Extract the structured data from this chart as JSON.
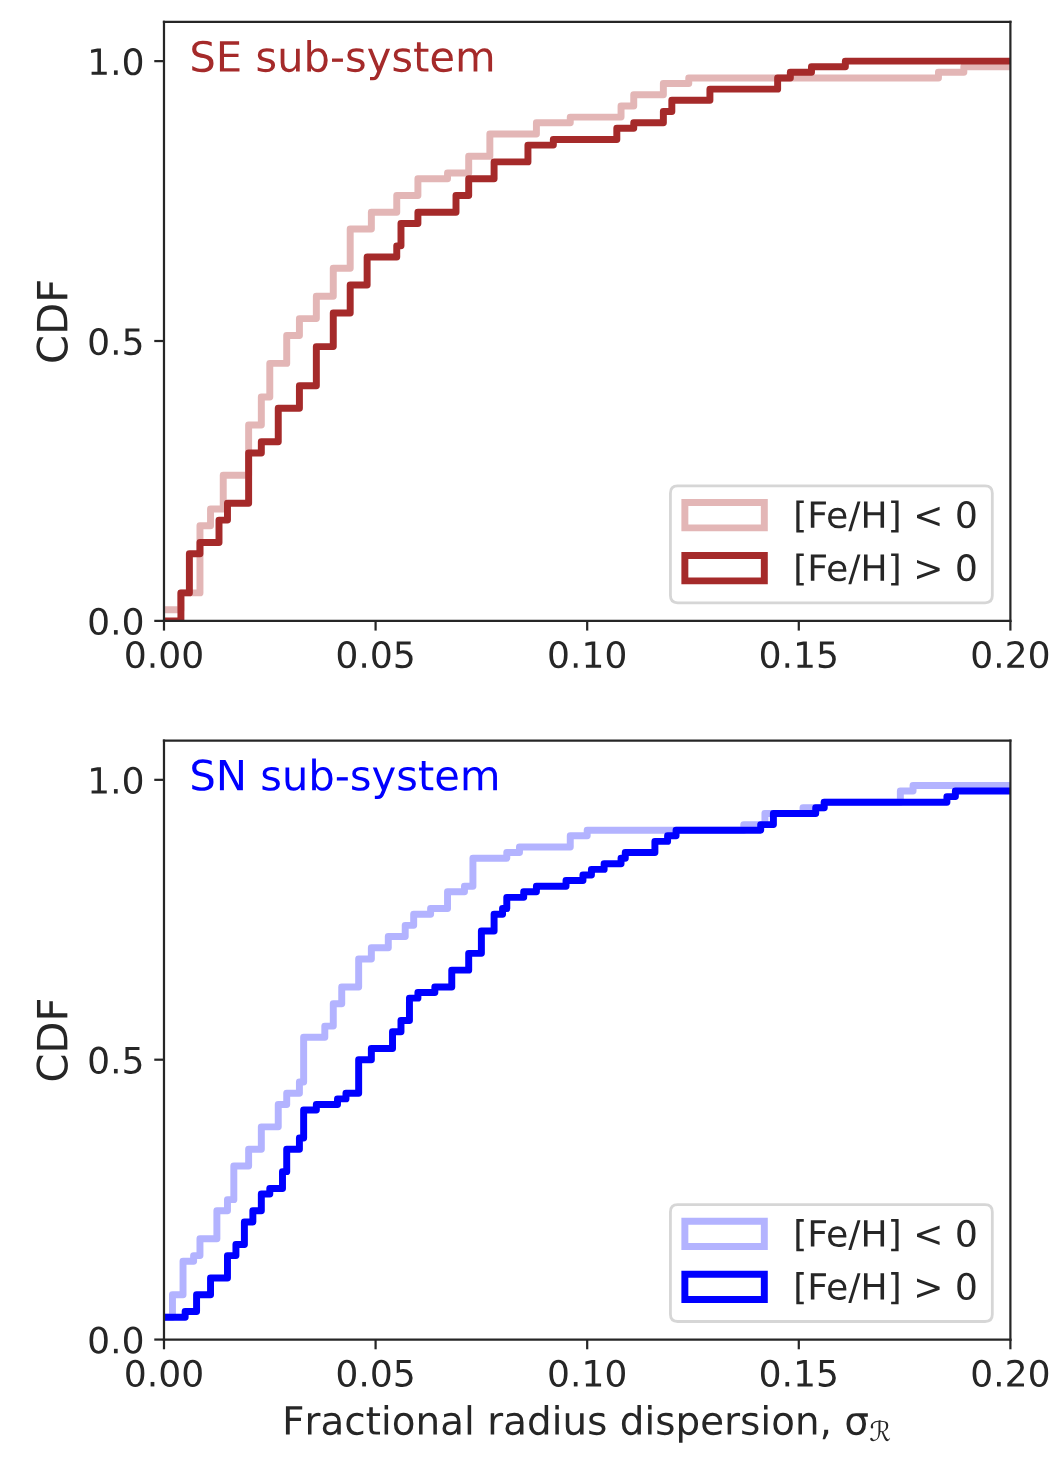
{
  "chart_data": [
    {
      "type": "step",
      "title": "SE sub-system",
      "ylabel": "CDF",
      "legend": "bottom right",
      "xlim": [
        0,
        0.2
      ],
      "ylim": [
        0,
        1.07
      ],
      "xticks": [
        {
          "value": 0,
          "label": "0.00"
        },
        {
          "value": 0.05,
          "label": "0.05"
        },
        {
          "value": 0.1,
          "label": "0.10"
        },
        {
          "value": 0.15,
          "label": "0.15"
        },
        {
          "value": 0.2,
          "label": "0.20"
        }
      ],
      "yticks": [
        {
          "value": 0,
          "label": "0.0"
        },
        {
          "value": 0.5,
          "label": "0.5"
        },
        {
          "value": 1,
          "label": "1.0"
        }
      ],
      "series": [
        {
          "name": "[Fe/H] < 0",
          "color": "#e3b6b6",
          "x": [
            0,
            0.004,
            0.0085,
            0.011,
            0.014,
            0.02,
            0.023,
            0.025,
            0.029,
            0.032,
            0.036,
            0.04,
            0.044,
            0.049,
            0.055,
            0.06,
            0.067,
            0.072,
            0.077,
            0.088,
            0.096,
            0.108,
            0.111,
            0.118,
            0.124,
            0.183,
            0.189,
            0.2
          ],
          "values": [
            0.02,
            0.05,
            0.17,
            0.2,
            0.26,
            0.35,
            0.4,
            0.46,
            0.51,
            0.54,
            0.58,
            0.63,
            0.7,
            0.73,
            0.76,
            0.79,
            0.8,
            0.83,
            0.87,
            0.89,
            0.9,
            0.92,
            0.94,
            0.96,
            0.97,
            0.98,
            0.99,
            0.99
          ]
        },
        {
          "name": "[Fe/H] > 0",
          "color": "#a52a2a",
          "x": [
            0,
            0.004,
            0.006,
            0.0085,
            0.013,
            0.015,
            0.02,
            0.023,
            0.027,
            0.032,
            0.036,
            0.04,
            0.044,
            0.048,
            0.055,
            0.056,
            0.06,
            0.068,
            0.069,
            0.072,
            0.078,
            0.086,
            0.092,
            0.107,
            0.111,
            0.118,
            0.12,
            0.129,
            0.145,
            0.148,
            0.153,
            0.161,
            0.2
          ],
          "values": [
            0,
            0.05,
            0.12,
            0.14,
            0.18,
            0.21,
            0.3,
            0.32,
            0.38,
            0.42,
            0.49,
            0.55,
            0.6,
            0.65,
            0.67,
            0.71,
            0.73,
            0.73,
            0.76,
            0.79,
            0.82,
            0.85,
            0.86,
            0.88,
            0.89,
            0.91,
            0.93,
            0.95,
            0.97,
            0.98,
            0.99,
            1.0,
            1.0
          ]
        }
      ]
    },
    {
      "type": "step",
      "title": "SN sub-system",
      "ylabel": "CDF",
      "xlabel": "Fractional radius dispersion, σ$_{ℛ}$",
      "legend": "bottom right",
      "xlim": [
        0,
        0.2
      ],
      "ylim": [
        0,
        1.07
      ],
      "xticks": [
        {
          "value": 0,
          "label": "0.00"
        },
        {
          "value": 0.05,
          "label": "0.05"
        },
        {
          "value": 0.1,
          "label": "0.10"
        },
        {
          "value": 0.15,
          "label": "0.15"
        },
        {
          "value": 0.2,
          "label": "0.20"
        }
      ],
      "yticks": [
        {
          "value": 0,
          "label": "0.0"
        },
        {
          "value": 0.5,
          "label": "0.5"
        },
        {
          "value": 1,
          "label": "1.0"
        }
      ],
      "series": [
        {
          "name": "[Fe/H] < 0",
          "color": "#b3b3ff",
          "x": [
            0,
            0.002,
            0.0045,
            0.007,
            0.0085,
            0.0125,
            0.015,
            0.0165,
            0.02,
            0.023,
            0.027,
            0.029,
            0.032,
            0.033,
            0.038,
            0.04,
            0.042,
            0.046,
            0.049,
            0.053,
            0.057,
            0.059,
            0.063,
            0.067,
            0.071,
            0.073,
            0.081,
            0.084,
            0.096,
            0.1,
            0.137,
            0.142,
            0.151,
            0.156,
            0.174,
            0.177,
            0.2
          ],
          "values": [
            0.04,
            0.08,
            0.14,
            0.15,
            0.18,
            0.23,
            0.25,
            0.31,
            0.34,
            0.38,
            0.42,
            0.44,
            0.46,
            0.54,
            0.56,
            0.6,
            0.63,
            0.68,
            0.7,
            0.72,
            0.74,
            0.76,
            0.77,
            0.8,
            0.81,
            0.86,
            0.87,
            0.88,
            0.9,
            0.91,
            0.92,
            0.94,
            0.95,
            0.96,
            0.98,
            0.99,
            0.99
          ]
        },
        {
          "name": "[Fe/H] > 0",
          "color": "#0000ff",
          "x": [
            0,
            0.005,
            0.0077,
            0.011,
            0.015,
            0.017,
            0.019,
            0.021,
            0.023,
            0.025,
            0.028,
            0.029,
            0.032,
            0.033,
            0.036,
            0.041,
            0.043,
            0.046,
            0.049,
            0.054,
            0.056,
            0.058,
            0.06,
            0.064,
            0.068,
            0.072,
            0.075,
            0.078,
            0.08,
            0.081,
            0.085,
            0.088,
            0.095,
            0.099,
            0.101,
            0.104,
            0.108,
            0.109,
            0.116,
            0.119,
            0.121,
            0.141,
            0.144,
            0.154,
            0.156,
            0.185,
            0.187,
            0.2
          ],
          "values": [
            0.04,
            0.05,
            0.08,
            0.11,
            0.15,
            0.17,
            0.21,
            0.23,
            0.26,
            0.27,
            0.3,
            0.34,
            0.36,
            0.41,
            0.42,
            0.43,
            0.44,
            0.5,
            0.52,
            0.55,
            0.57,
            0.61,
            0.62,
            0.63,
            0.66,
            0.69,
            0.73,
            0.76,
            0.77,
            0.79,
            0.8,
            0.81,
            0.82,
            0.83,
            0.84,
            0.85,
            0.86,
            0.87,
            0.89,
            0.9,
            0.91,
            0.92,
            0.94,
            0.95,
            0.96,
            0.97,
            0.98,
            0.98
          ]
        }
      ]
    }
  ]
}
